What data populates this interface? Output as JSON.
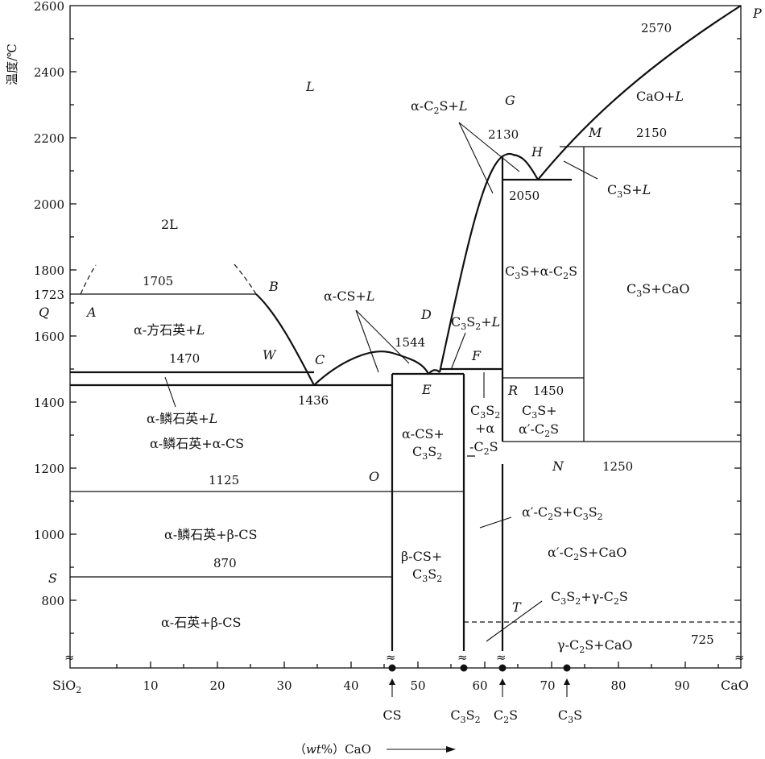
{
  "y_axis": {
    "title": "温度/℃",
    "ticks": [
      "2600",
      "2400",
      "2200",
      "2000",
      "1800",
      "1600",
      "1400",
      "1200",
      "1000",
      "800"
    ],
    "extra_ticks": [
      "1723"
    ]
  },
  "x_axis": {
    "left_end": "SiO",
    "left_end_sub": "2",
    "right_end": "CaO",
    "ticks": [
      "10",
      "20",
      "30",
      "40",
      "50",
      "60",
      "70",
      "80",
      "90"
    ],
    "title_prefix": "（",
    "title_italic": "wt",
    "title_suffix": "%）CaO"
  },
  "compounds": [
    {
      "main": "CS"
    },
    {
      "pre": "C",
      "s1": "3",
      "mid": "S",
      "s2": "2"
    },
    {
      "pre": "C",
      "s1": "2",
      "mid": "S"
    },
    {
      "pre": "C",
      "s1": "3",
      "mid": "S"
    }
  ],
  "temperatures": {
    "t2570": "2570",
    "t2150": "2150",
    "t2130": "2130",
    "t2050": "2050",
    "t1705": "1705",
    "t1544": "1544",
    "t1470": "1470",
    "t1436": "1436",
    "t1450": "1450",
    "t1250": "1250",
    "t1125": "1125",
    "t870": "870",
    "t725": "725"
  },
  "points": {
    "P": "P",
    "L": "L",
    "G": "G",
    "H": "H",
    "M": "M",
    "A": "A",
    "B": "B",
    "Q": "Q",
    "W": "W",
    "C": "C",
    "D": "D",
    "E": "E",
    "F": "F",
    "R": "R",
    "O": "O",
    "N": "N",
    "S": "S",
    "T": "T"
  },
  "regions": {
    "two_L": "2L",
    "cao_l": "CaO+",
    "alpha_c2s_l": "α-C",
    "c3s_l": "C",
    "c3s_a_c2s": "C",
    "c3s_cao": "C",
    "alpha_cs_l": "α-CS+",
    "c3s2_l": "C",
    "cristobalite_l": "α-方石英+",
    "tridymite_l": "α-鳞石英+",
    "tridymite_acs": "α-鳞石英+α-CS",
    "acs_c3s2": "α-CS+",
    "c3s2_a_c2s_1": "C",
    "c3s2_a_c2s_2": "+α",
    "c3s2_a_c2s_3": "-C",
    "c3s_ap_c2s_1": "C",
    "c3s_ap_c2s_2": "α′-C",
    "ap_c2s_c3s2": "α′-C",
    "ap_c2s_cao": "α′-C",
    "tridymite_bcs": "α-鳞石英+β-CS",
    "bcs_c3s2": "β-CS+",
    "c3s2_g_c2s": "C",
    "g_c2s_cao": "γ-C",
    "quartz_bcs": "α-石英+β-CS"
  },
  "break_symbol": "≈"
}
